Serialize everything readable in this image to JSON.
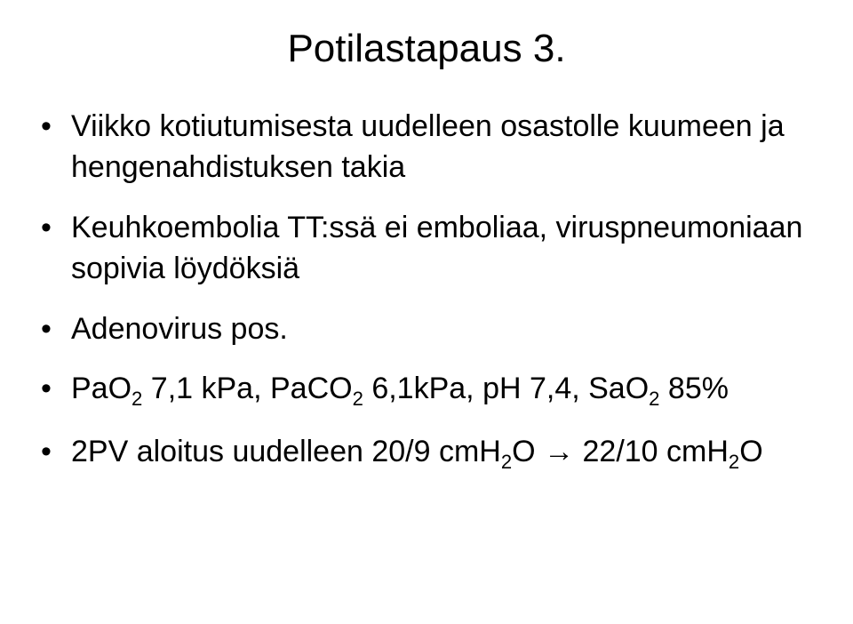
{
  "slide": {
    "title": "Potilastapaus 3.",
    "title_fontsize": 44,
    "bullet_fontsize": 34,
    "background_color": "#ffffff",
    "text_color": "#000000",
    "bullets": [
      {
        "segments": [
          {
            "type": "text",
            "value": "Viikko kotiutumisesta uudelleen osastolle kuumeen ja hengenahdistuksen takia"
          }
        ]
      },
      {
        "segments": [
          {
            "type": "text",
            "value": "Keuhkoembolia TT:ssä ei emboliaa, viruspneumoniaan sopivia löydöksiä"
          }
        ]
      },
      {
        "segments": [
          {
            "type": "text",
            "value": "Adenovirus pos."
          }
        ]
      },
      {
        "segments": [
          {
            "type": "text",
            "value": "PaO"
          },
          {
            "type": "sub",
            "value": "2"
          },
          {
            "type": "text",
            "value": " 7,1 kPa, PaCO"
          },
          {
            "type": "sub",
            "value": "2"
          },
          {
            "type": "text",
            "value": " 6,1kPa, pH 7,4, SaO"
          },
          {
            "type": "sub",
            "value": "2"
          },
          {
            "type": "text",
            "value": " 85%"
          }
        ]
      },
      {
        "segments": [
          {
            "type": "text",
            "value": "2PV aloitus uudelleen 20/9 cmH"
          },
          {
            "type": "sub",
            "value": "2"
          },
          {
            "type": "text",
            "value": "O "
          },
          {
            "type": "arrow",
            "value": "→"
          },
          {
            "type": "text",
            "value": " 22/10 cmH"
          },
          {
            "type": "sub",
            "value": "2"
          },
          {
            "type": "text",
            "value": "O"
          }
        ]
      }
    ]
  }
}
